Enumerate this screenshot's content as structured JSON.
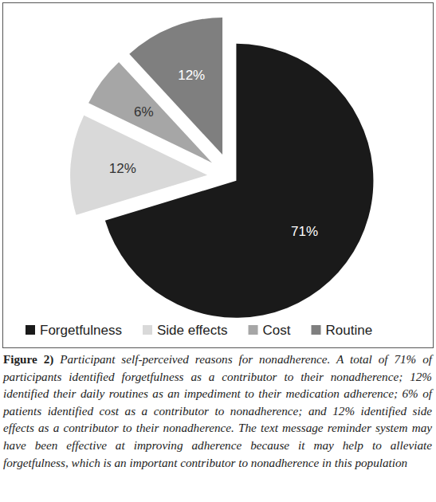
{
  "chart_data": {
    "type": "pie",
    "categories": [
      "Forgetfulness",
      "Side effects",
      "Cost",
      "Routine"
    ],
    "values": [
      71,
      12,
      6,
      12
    ],
    "value_labels": [
      "71%",
      "12%",
      "6%",
      "12%"
    ],
    "colors": [
      "#1a1a1a",
      "#d9d9d9",
      "#a6a6a6",
      "#7f7f7f"
    ],
    "data_labels": true,
    "legend": "bottom",
    "caption": {
      "label": "Figure 2)",
      "text": "Participant self-perceived reasons for nonadherence. A total of 71% of participants identified forgetfulness as a contributor to their nonadherence; 12% identified their daily routines as an impediment to their medication adherence; 6% of patients identified cost as a contributor to nonadherence; and 12% identified side effects as a contributor to their nonadherence. The text message reminder system may have been effective at improving adherence because it may help to alleviate forgetfulness, which is an important contributor to nonadherence in this population"
    }
  }
}
